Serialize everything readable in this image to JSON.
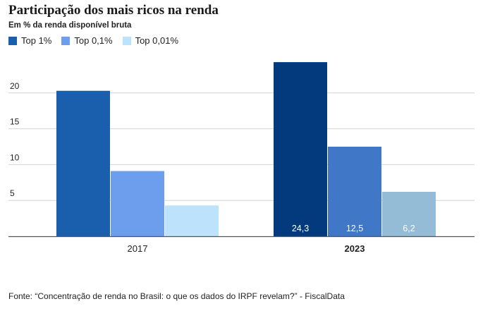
{
  "title": "Participação dos mais ricos na renda",
  "subtitle": "Em % da renda disponível bruta",
  "source": "Fonte: “Concentração de renda no Brasil: o que os dados do IRPF revelam?” - FiscalData",
  "chart_data": {
    "type": "bar",
    "categories": [
      "2017",
      "2023"
    ],
    "category_bold": [
      false,
      true
    ],
    "series": [
      {
        "name": "Top 1%",
        "values": [
          20.3,
          24.3
        ],
        "colors": [
          "#1a5fad",
          "#033a7e"
        ]
      },
      {
        "name": "Top 0,1%",
        "values": [
          9.1,
          12.5
        ],
        "colors": [
          "#6d9ded",
          "#4077c7"
        ]
      },
      {
        "name": "Top 0,01%",
        "values": [
          4.3,
          6.2
        ],
        "colors": [
          "#bde2fb",
          "#95bcd6"
        ]
      }
    ],
    "data_labels": [
      [
        null,
        "24,3"
      ],
      [
        null,
        "12,5"
      ],
      [
        null,
        "6,2"
      ]
    ],
    "legend_colors": [
      "#1a5fad",
      "#6d9ded",
      "#bde2fb"
    ],
    "yticks": [
      "5",
      "10",
      "15",
      "20"
    ],
    "ylim": [
      0,
      25
    ],
    "grid": true,
    "legend_position": "top-left",
    "xlabel": "",
    "ylabel": ""
  }
}
